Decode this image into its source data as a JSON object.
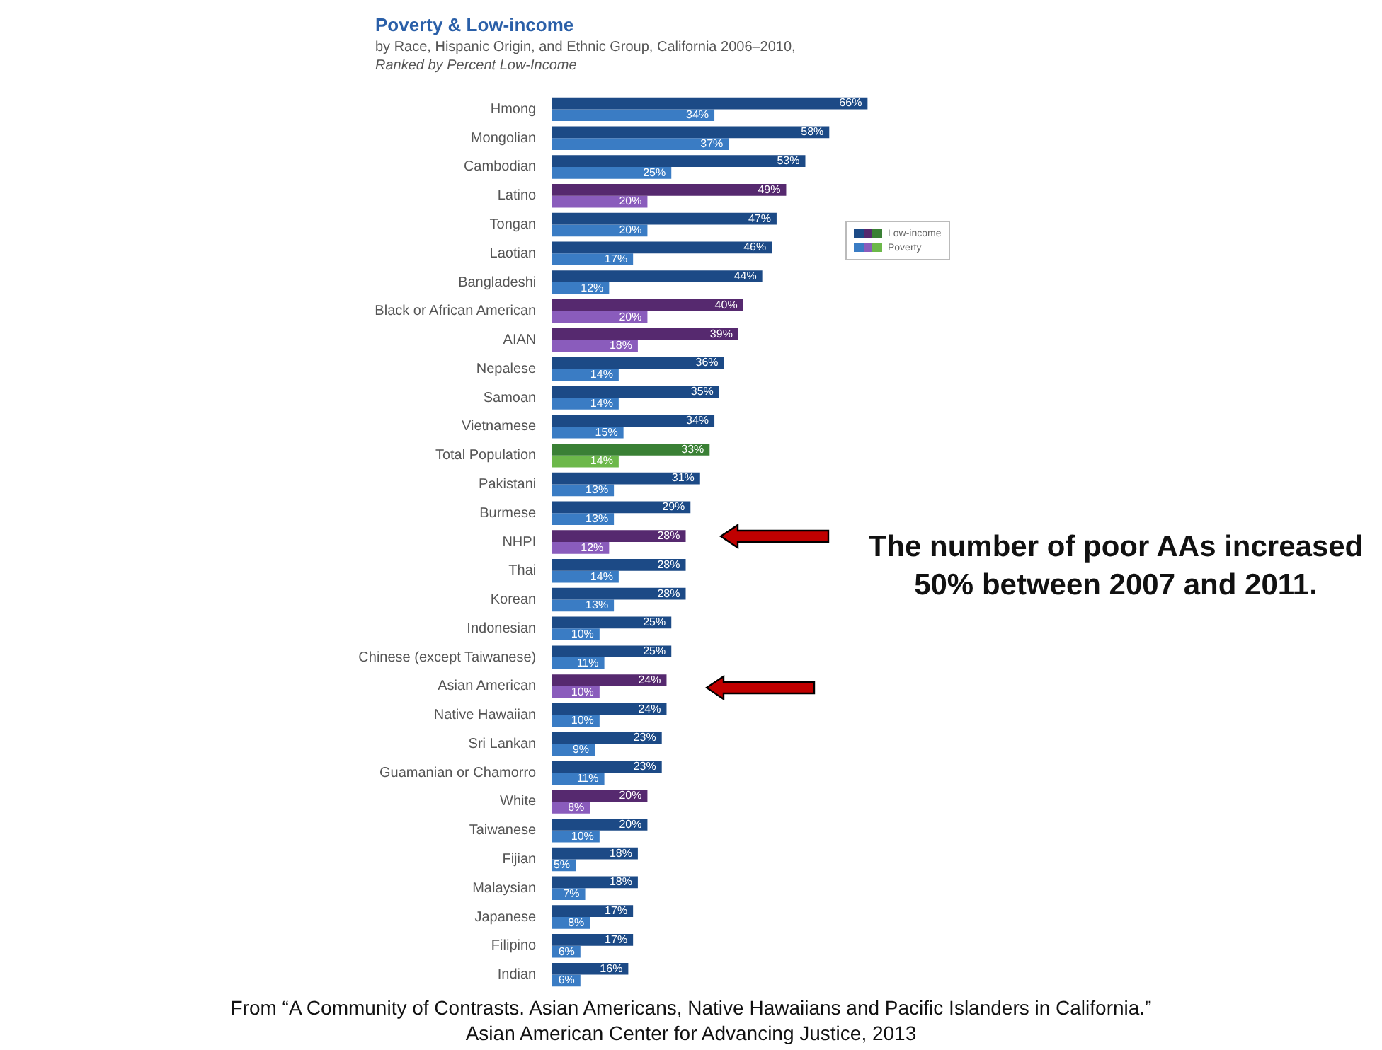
{
  "chart_data": {
    "type": "bar",
    "orientation": "horizontal",
    "title": "Poverty & Low-income",
    "subtitle": "by Race, Hispanic Origin, and Ethnic Group, California 2006–2010,\nRanked by Percent Low-Income",
    "categories": [
      "Hmong",
      "Mongolian",
      "Cambodian",
      "Latino",
      "Tongan",
      "Laotian",
      "Bangladeshi",
      "Black or African American",
      "AIAN",
      "Nepalese",
      "Samoan",
      "Vietnamese",
      "Total Population",
      "Pakistani",
      "Burmese",
      "NHPI",
      "Thai",
      "Korean",
      "Indonesian",
      "Chinese (except Taiwanese)",
      "Asian American",
      "Native Hawaiian",
      "Sri Lankan",
      "Guamanian or Chamorro",
      "White",
      "Taiwanese",
      "Fijian",
      "Malaysian",
      "Japanese",
      "Filipino",
      "Indian"
    ],
    "series": [
      {
        "name": "Low-income",
        "color": "#1c4a86",
        "colors": [
          "#1c4a86",
          "#1c4a86",
          "#1c4a86",
          "#56296f",
          "#1c4a86",
          "#1c4a86",
          "#1c4a86",
          "#56296f",
          "#56296f",
          "#1c4a86",
          "#1c4a86",
          "#1c4a86",
          "#3a8035",
          "#1c4a86",
          "#1c4a86",
          "#56296f",
          "#1c4a86",
          "#1c4a86",
          "#1c4a86",
          "#1c4a86",
          "#56296f",
          "#1c4a86",
          "#1c4a86",
          "#1c4a86",
          "#56296f",
          "#1c4a86",
          "#1c4a86",
          "#1c4a86",
          "#1c4a86",
          "#1c4a86",
          "#1c4a86"
        ],
        "values": [
          66,
          58,
          53,
          49,
          47,
          46,
          44,
          40,
          39,
          36,
          35,
          34,
          33,
          31,
          29,
          28,
          28,
          28,
          25,
          25,
          24,
          24,
          23,
          23,
          20,
          20,
          18,
          18,
          17,
          17,
          16
        ],
        "value_labels": [
          "66%",
          "58%",
          "53%",
          "49%",
          "47%",
          "46%",
          "44%",
          "40%",
          "39%",
          "36%",
          "35%",
          "34%",
          "33%",
          "31%",
          "29%",
          "28%",
          "28%",
          "28%",
          "25%",
          "25%",
          "24%",
          "24%",
          "23%",
          "23%",
          "20%",
          "20%",
          "18%",
          "18%",
          "17%",
          "17%",
          "16%"
        ]
      },
      {
        "name": "Poverty",
        "color": "#3a7cc4",
        "colors": [
          "#3a7cc4",
          "#3a7cc4",
          "#3a7cc4",
          "#8a5cbc",
          "#3a7cc4",
          "#3a7cc4",
          "#3a7cc4",
          "#8a5cbc",
          "#8a5cbc",
          "#3a7cc4",
          "#3a7cc4",
          "#3a7cc4",
          "#6cb84a",
          "#3a7cc4",
          "#3a7cc4",
          "#8a5cbc",
          "#3a7cc4",
          "#3a7cc4",
          "#3a7cc4",
          "#3a7cc4",
          "#8a5cbc",
          "#3a7cc4",
          "#3a7cc4",
          "#3a7cc4",
          "#8a5cbc",
          "#3a7cc4",
          "#3a7cc4",
          "#3a7cc4",
          "#3a7cc4",
          "#3a7cc4",
          "#3a7cc4"
        ],
        "values": [
          34,
          37,
          25,
          20,
          20,
          17,
          12,
          20,
          18,
          14,
          14,
          15,
          14,
          13,
          13,
          12,
          14,
          13,
          10,
          11,
          10,
          10,
          9,
          11,
          8,
          10,
          5,
          7,
          8,
          6,
          6
        ],
        "value_labels": [
          "34%",
          "37%",
          "25%",
          "20%",
          "20%",
          "17%",
          "12%",
          "20%",
          "18%",
          "14%",
          "14%",
          "15%",
          "14%",
          "13%",
          "13%",
          "12%",
          "14%",
          "13%",
          "10%",
          "11%",
          "10%",
          "10%",
          "9%",
          "11%",
          "8%",
          "10%",
          "5%",
          "7%",
          "8%",
          "6%",
          "6%"
        ]
      }
    ],
    "legend": "right",
    "annotations": [
      "The number of poor AAs increased 50% between 2007 and 2011.",
      "From “A Community of Contrasts. Asian Americans, Native Hawaiians and Pacific Islanders in California.”\nAsian American Center for Advancing Justice, 2013"
    ]
  }
}
